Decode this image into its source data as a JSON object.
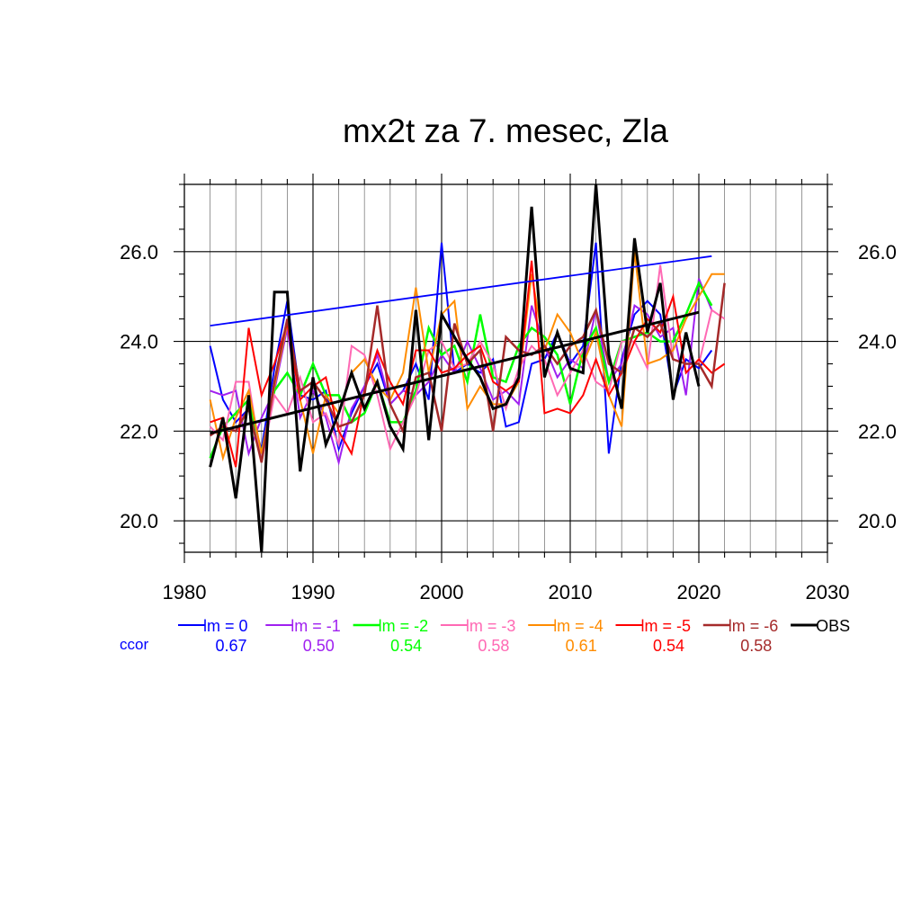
{
  "chart_data": {
    "type": "line",
    "title": "mx2t za 7. mesec, Zla",
    "xlabel": "",
    "ylabel": "",
    "xlim": [
      1980,
      2030
    ],
    "ylim": [
      19.3,
      27.5
    ],
    "x_ticks": [
      "1980",
      "1990",
      "2000",
      "2010",
      "2020",
      "2030"
    ],
    "x_tick_values": [
      1980,
      1990,
      2000,
      2010,
      2020,
      2030
    ],
    "y_ticks": [
      "20.0",
      "22.0",
      "24.0",
      "26.0"
    ],
    "y_tick_values": [
      20,
      22,
      24,
      26
    ],
    "grid": true,
    "legend_placement": "bottom",
    "ccor_label": "ccor",
    "ccor_color": "#0000ff",
    "series": [
      {
        "name": "lm = 0",
        "color": "#0000ff",
        "width": 2,
        "ccor": "0.67",
        "x": [
          1982,
          1983,
          1984,
          1985,
          1986,
          1987,
          1988,
          1989,
          1990,
          1991,
          1992,
          1993,
          1994,
          1995,
          1996,
          1997,
          1998,
          1999,
          2000,
          2001,
          2002,
          2003,
          2004,
          2005,
          2006,
          2007,
          2008,
          2009,
          2010,
          2011,
          2012,
          2013,
          2014,
          2015,
          2016,
          2017,
          2018,
          2019,
          2020,
          2021
        ],
        "values": [
          23.9,
          22.7,
          22.2,
          22.5,
          21.6,
          23.4,
          24.9,
          22.8,
          22.7,
          22.9,
          21.6,
          22.4,
          23.0,
          23.5,
          22.6,
          22.9,
          23.5,
          22.7,
          26.2,
          23.3,
          23.5,
          23.3,
          23.6,
          22.1,
          22.2,
          23.5,
          23.6,
          24.2,
          23.5,
          23.9,
          26.2,
          21.5,
          23.6,
          24.6,
          24.9,
          24.6,
          22.8,
          23.6,
          23.4,
          23.8
        ]
      },
      {
        "name": "lm = -1",
        "color": "#a020f0",
        "width": 2,
        "ccor": "0.50",
        "x": [
          1982,
          1983,
          1984,
          1985,
          1986,
          1987,
          1988,
          1989,
          1990,
          1991,
          1992,
          1993,
          1994,
          1995,
          1996,
          1997,
          1998,
          1999,
          2000,
          2001,
          2002,
          2003,
          2004,
          2005,
          2006,
          2007,
          2008,
          2009,
          2010,
          2011,
          2012,
          2013,
          2014,
          2015,
          2016,
          2017,
          2018,
          2019,
          2020,
          2021
        ],
        "values": [
          22.9,
          22.8,
          22.9,
          21.5,
          22.3,
          22.9,
          24.3,
          22.3,
          22.9,
          22.3,
          21.3,
          22.5,
          23.0,
          23.7,
          22.6,
          22.9,
          22.8,
          23.1,
          23.7,
          23.3,
          24.0,
          23.4,
          22.7,
          22.9,
          22.6,
          24.8,
          23.9,
          23.2,
          23.6,
          23.4,
          24.7,
          23.1,
          23.5,
          24.8,
          24.6,
          24.1,
          24.3,
          22.8,
          25.4,
          24.7
        ]
      },
      {
        "name": "lm = -2",
        "color": "#00ff00",
        "width": 2.5,
        "ccor": "0.54",
        "x": [
          1982,
          1983,
          1984,
          1985,
          1986,
          1987,
          1988,
          1989,
          1990,
          1991,
          1992,
          1993,
          1994,
          1995,
          1996,
          1997,
          1998,
          1999,
          2000,
          2001,
          2002,
          2003,
          2004,
          2005,
          2006,
          2007,
          2008,
          2009,
          2010,
          2011,
          2012,
          2013,
          2014,
          2015,
          2016,
          2017,
          2018,
          2019,
          2020,
          2021
        ],
        "values": [
          21.4,
          22.1,
          22.4,
          22.7,
          21.5,
          22.9,
          23.3,
          22.8,
          23.5,
          22.8,
          22.8,
          22.2,
          22.4,
          23.1,
          22.2,
          22.2,
          22.9,
          24.3,
          23.7,
          23.9,
          23.1,
          24.6,
          23.2,
          23.1,
          23.9,
          24.3,
          24.1,
          23.7,
          22.6,
          23.8,
          24.3,
          23.1,
          24.0,
          24.1,
          24.2,
          24.0,
          24.0,
          24.6,
          25.3,
          24.8
        ]
      },
      {
        "name": "lm = -3",
        "color": "#ff69b4",
        "width": 2,
        "ccor": "0.58",
        "x": [
          1982,
          1983,
          1984,
          1985,
          1986,
          1987,
          1988,
          1989,
          1990,
          1991,
          1992,
          1993,
          1994,
          1995,
          1996,
          1997,
          1998,
          1999,
          2000,
          2001,
          2002,
          2003,
          2004,
          2005,
          2006,
          2007,
          2008,
          2009,
          2010,
          2011,
          2012,
          2013,
          2014,
          2015,
          2016,
          2017,
          2018,
          2019,
          2020,
          2021,
          2022
        ],
        "values": [
          22.1,
          21.8,
          23.1,
          23.1,
          21.3,
          22.8,
          22.4,
          23.2,
          22.2,
          22.4,
          21.7,
          23.9,
          23.7,
          22.8,
          21.6,
          22.2,
          22.8,
          23.8,
          24.0,
          23.4,
          23.5,
          24.0,
          23.5,
          22.5,
          23.4,
          23.9,
          23.6,
          22.8,
          23.3,
          23.8,
          23.1,
          22.9,
          24.0,
          24.0,
          23.4,
          25.7,
          23.6,
          23.5,
          23.5,
          24.7,
          24.5
        ]
      },
      {
        "name": "lm = -4",
        "color": "#ff8c00",
        "width": 2,
        "ccor": "0.61",
        "x": [
          1982,
          1983,
          1984,
          1985,
          1986,
          1987,
          1988,
          1989,
          1990,
          1991,
          1992,
          1993,
          1994,
          1995,
          1996,
          1997,
          1998,
          1999,
          2000,
          2001,
          2002,
          2003,
          2004,
          2005,
          2006,
          2007,
          2008,
          2009,
          2010,
          2011,
          2012,
          2013,
          2014,
          2015,
          2016,
          2017,
          2018,
          2019,
          2020,
          2021,
          2022
        ],
        "values": [
          22.7,
          21.4,
          22.3,
          22.9,
          21.5,
          23.0,
          24.4,
          22.7,
          21.5,
          22.8,
          22.4,
          23.3,
          23.6,
          23.0,
          22.7,
          23.3,
          25.2,
          23.3,
          24.6,
          24.9,
          22.5,
          23.0,
          22.6,
          22.6,
          23.1,
          25.5,
          23.8,
          24.6,
          24.2,
          23.5,
          24.2,
          22.8,
          22.1,
          26.0,
          23.5,
          23.6,
          23.8,
          24.5,
          25.0,
          25.5,
          25.5
        ]
      },
      {
        "name": "lm = -5",
        "color": "#ff0000",
        "width": 2,
        "ccor": "0.54",
        "x": [
          1982,
          1983,
          1984,
          1985,
          1986,
          1987,
          1988,
          1989,
          1990,
          1991,
          1992,
          1993,
          1994,
          1995,
          1996,
          1997,
          1998,
          1999,
          2000,
          2001,
          2002,
          2003,
          2004,
          2005,
          2006,
          2007,
          2008,
          2009,
          2010,
          2011,
          2012,
          2013,
          2014,
          2015,
          2016,
          2017,
          2018,
          2019,
          2020,
          2021,
          2022
        ],
        "values": [
          22.2,
          22.3,
          21.2,
          24.3,
          22.8,
          23.5,
          24.4,
          22.7,
          23.0,
          23.2,
          22.0,
          21.5,
          22.9,
          23.8,
          23.1,
          22.6,
          23.8,
          23.8,
          23.3,
          23.4,
          23.7,
          23.9,
          23.1,
          22.9,
          23.1,
          25.8,
          22.4,
          22.5,
          22.4,
          22.8,
          23.6,
          22.8,
          23.3,
          24.0,
          24.5,
          24.2,
          25.0,
          23.3,
          23.6,
          23.3,
          23.5
        ]
      },
      {
        "name": "lm = -6",
        "color": "#a52a2a",
        "width": 2.5,
        "ccor": "0.58",
        "x": [
          1982,
          1983,
          1984,
          1985,
          1986,
          1987,
          1988,
          1989,
          1990,
          1991,
          1992,
          1993,
          1994,
          1995,
          1996,
          1997,
          1998,
          1999,
          2000,
          2001,
          2002,
          2003,
          2004,
          2005,
          2006,
          2007,
          2008,
          2009,
          2010,
          2011,
          2012,
          2013,
          2014,
          2015,
          2016,
          2017,
          2018,
          2019,
          2020,
          2021,
          2022
        ],
        "values": [
          21.9,
          22.1,
          22.0,
          22.5,
          21.3,
          23.1,
          24.5,
          22.9,
          23.1,
          22.7,
          22.1,
          22.2,
          22.8,
          24.8,
          22.6,
          22.0,
          23.2,
          23.3,
          22.0,
          24.4,
          23.5,
          23.8,
          22.0,
          24.1,
          23.8,
          23.7,
          23.9,
          23.5,
          23.9,
          24.1,
          24.7,
          23.5,
          23.3,
          24.3,
          24.1,
          24.4,
          23.6,
          23.5,
          23.5,
          23.0,
          25.3
        ]
      },
      {
        "name": "OBS",
        "color": "#000000",
        "width": 3,
        "ccor": "",
        "x": [
          1982,
          1983,
          1984,
          1985,
          1986,
          1987,
          1988,
          1989,
          1990,
          1991,
          1992,
          1993,
          1994,
          1995,
          1996,
          1997,
          1998,
          1999,
          2000,
          2001,
          2002,
          2003,
          2004,
          2005,
          2006,
          2007,
          2008,
          2009,
          2010,
          2011,
          2012,
          2013,
          2014,
          2015,
          2016,
          2017,
          2018,
          2019,
          2020
        ],
        "values": [
          21.2,
          22.3,
          20.5,
          22.8,
          19.3,
          25.1,
          25.1,
          21.1,
          23.2,
          21.7,
          22.4,
          23.3,
          22.5,
          23.1,
          22.1,
          21.6,
          24.7,
          21.8,
          24.6,
          24.1,
          23.6,
          23.2,
          22.5,
          22.6,
          23.2,
          27.0,
          23.2,
          24.2,
          23.4,
          23.3,
          27.5,
          23.7,
          22.5,
          26.3,
          24.2,
          25.3,
          22.7,
          24.2,
          23.0
        ]
      }
    ],
    "trend_lines": [
      {
        "series": "lm = 0",
        "color": "#0000ff",
        "width": 1.8,
        "x": [
          1982,
          2021
        ],
        "values": [
          24.35,
          25.9
        ]
      },
      {
        "series": "OBS",
        "color": "#000000",
        "width": 3,
        "x": [
          1982,
          2020
        ],
        "values": [
          21.95,
          24.65
        ]
      }
    ]
  }
}
